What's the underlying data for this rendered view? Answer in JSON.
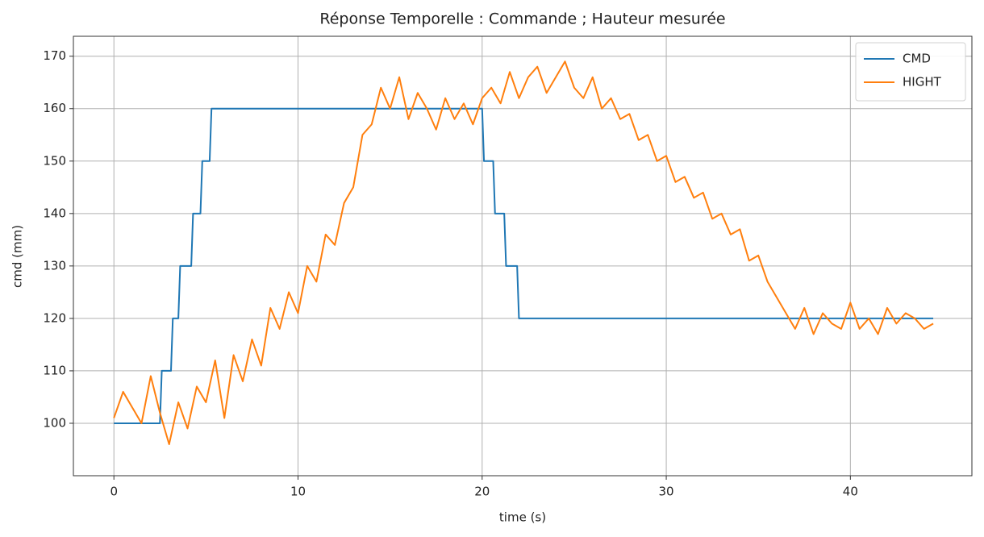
{
  "chart_data": {
    "type": "line",
    "title": "Réponse Temporelle : Commande ; Hauteur mesurée",
    "xlabel": "time (s)",
    "ylabel": "cmd (mm)",
    "xlim": [
      -2.2,
      46.6
    ],
    "ylim": [
      90,
      173.8
    ],
    "xticks": [
      0,
      10,
      20,
      30,
      40
    ],
    "yticks": [
      100,
      110,
      120,
      130,
      140,
      150,
      160,
      170
    ],
    "grid": true,
    "legend": "upper right",
    "series": [
      {
        "name": "CMD",
        "color": "#1f77b4",
        "x": [
          0,
          2.5,
          2.6,
          3.1,
          3.2,
          3.5,
          3.6,
          4.2,
          4.3,
          4.7,
          4.8,
          5.2,
          5.3,
          20.0,
          20.1,
          20.6,
          20.7,
          21.2,
          21.3,
          21.9,
          22.0,
          44.5
        ],
        "values": [
          100,
          100,
          110,
          110,
          120,
          120,
          130,
          130,
          140,
          140,
          150,
          150,
          160,
          160,
          150,
          150,
          140,
          140,
          130,
          130,
          120,
          120
        ]
      },
      {
        "name": "HIGHT",
        "color": "#ff7f0e",
        "x": [
          0,
          0.5,
          1,
          1.5,
          2,
          2.5,
          3,
          3.5,
          4,
          4.5,
          5,
          5.5,
          6,
          6.5,
          7,
          7.5,
          8,
          8.5,
          9,
          9.5,
          10,
          10.5,
          11,
          11.5,
          12,
          12.5,
          13,
          13.5,
          14,
          14.5,
          15,
          15.5,
          16,
          16.5,
          17,
          17.5,
          18,
          18.5,
          19,
          19.5,
          20,
          20.5,
          21,
          21.5,
          22,
          22.5,
          23,
          23.5,
          24,
          24.5,
          25,
          25.5,
          26,
          26.5,
          27,
          27.5,
          28,
          28.5,
          29,
          29.5,
          30,
          30.5,
          31,
          31.5,
          32,
          32.5,
          33,
          33.5,
          34,
          34.5,
          35,
          35.5,
          36,
          36.5,
          37,
          37.5,
          38,
          38.5,
          39,
          39.5,
          40,
          40.5,
          41,
          41.5,
          42,
          42.5,
          43,
          43.5,
          44,
          44.5
        ],
        "values": [
          101,
          106,
          103,
          100,
          109,
          102,
          96,
          104,
          99,
          107,
          104,
          112,
          101,
          113,
          108,
          116,
          111,
          122,
          118,
          125,
          121,
          130,
          127,
          136,
          134,
          142,
          145,
          155,
          157,
          164,
          160,
          166,
          158,
          163,
          160,
          156,
          162,
          158,
          161,
          157,
          162,
          164,
          161,
          167,
          162,
          166,
          168,
          163,
          166,
          169,
          164,
          162,
          166,
          160,
          162,
          158,
          159,
          154,
          155,
          150,
          151,
          146,
          147,
          143,
          144,
          139,
          140,
          136,
          137,
          131,
          132,
          127,
          124,
          121,
          118,
          122,
          117,
          121,
          119,
          118,
          123,
          118,
          120,
          117,
          122,
          119,
          121,
          120,
          118,
          119
        ]
      }
    ]
  }
}
